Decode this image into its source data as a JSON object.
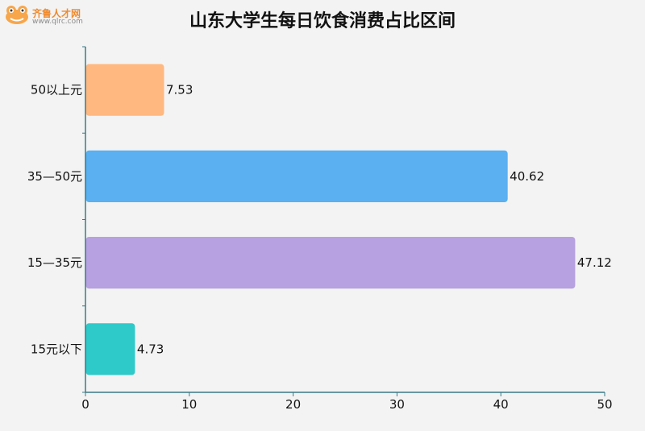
{
  "watermark": {
    "brand": "齐鲁人才网",
    "url": "www.qlrc.com"
  },
  "chart_data": {
    "type": "bar",
    "orientation": "horizontal",
    "title": "山东大学生每日饮食消费占比区间",
    "categories": [
      "50以上元",
      "35—50元",
      "15—35元",
      "15元以下"
    ],
    "values": [
      7.53,
      40.62,
      47.12,
      4.73
    ],
    "colors": [
      "#ffb880",
      "#5ab0f0",
      "#b7a1e0",
      "#2ec9c9"
    ],
    "xlim": [
      0,
      50
    ],
    "xticks": [
      0,
      10,
      20,
      30,
      40,
      50
    ],
    "xlabel": "",
    "ylabel": "",
    "grid": false
  }
}
